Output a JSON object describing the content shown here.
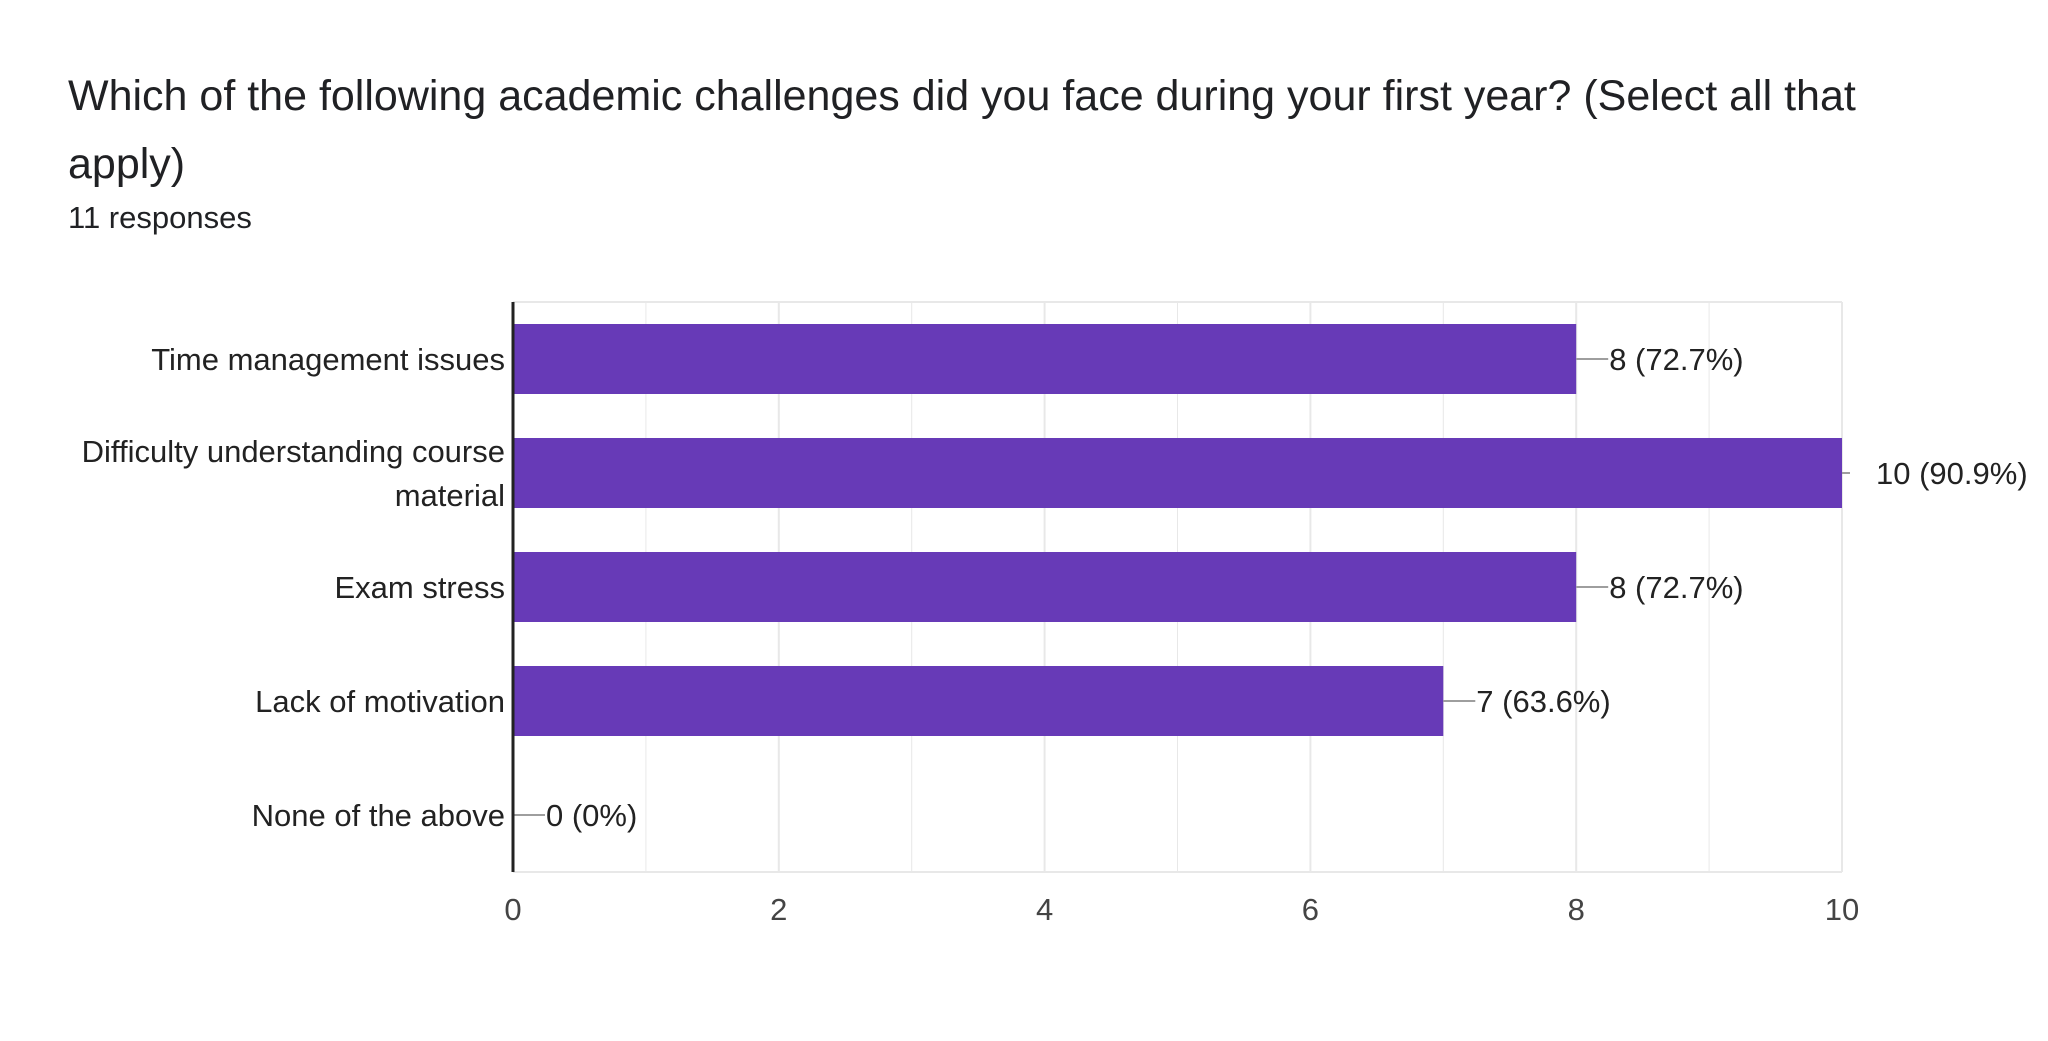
{
  "question": {
    "title": "Which of the following academic challenges did you face during your first year? (Select all that apply)",
    "response_count": "11 responses"
  },
  "colors": {
    "bar": "#673ab7",
    "grid": "#e8e8e8",
    "axis": "#222222",
    "leader": "#9e9e9e"
  },
  "chart_data": {
    "type": "bar",
    "orientation": "horizontal",
    "categories": [
      [
        "Time management issues"
      ],
      [
        "Difficulty understanding course",
        "material"
      ],
      [
        "Exam stress"
      ],
      [
        "Lack of motivation"
      ],
      [
        "None of the above"
      ]
    ],
    "values": [
      8,
      10,
      8,
      7,
      0
    ],
    "data_labels": [
      "8 (72.7%)",
      "10 (90.9%)",
      "8 (72.7%)",
      "7 (63.6%)",
      "0 (0%)"
    ],
    "xlim": [
      0,
      10
    ],
    "xticks": [
      0,
      2,
      4,
      6,
      8,
      10
    ],
    "grid": true,
    "legend": "none"
  }
}
